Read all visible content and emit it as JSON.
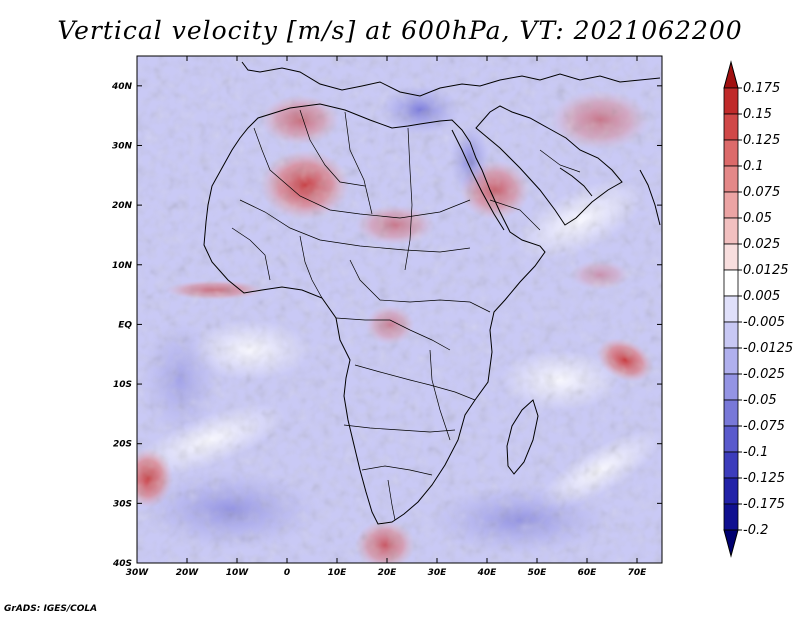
{
  "title": "Vertical velocity [m/s] at 600hPa, VT: 2021062200",
  "credit": "GrADS: IGES/COLA",
  "map": {
    "lon_range": [
      -30,
      75
    ],
    "lat_range": [
      -40,
      45
    ],
    "lon_ticks": [
      "30W",
      "20W",
      "10W",
      "0",
      "10E",
      "20E",
      "30E",
      "40E",
      "50E",
      "60E",
      "70E"
    ],
    "lat_ticks": [
      "40S",
      "30S",
      "20S",
      "10S",
      "EQ",
      "10N",
      "20N",
      "30N",
      "40N"
    ],
    "background_color": "#c9c9f5"
  },
  "colorbar": {
    "levels": [
      "0.175",
      "0.15",
      "0.125",
      "0.1",
      "0.075",
      "0.05",
      "0.025",
      "0.0125",
      "0.005",
      "-0.005",
      "-0.0125",
      "-0.025",
      "-0.05",
      "-0.075",
      "-0.1",
      "-0.125",
      "-0.175",
      "-0.2"
    ],
    "colors": [
      "#a01010",
      "#c02a2a",
      "#d04848",
      "#dc6a6a",
      "#e48888",
      "#eca4a4",
      "#f2c0c0",
      "#f8dede",
      "#ffffff",
      "#e0e0fa",
      "#c8c8f4",
      "#b0b0ee",
      "#9494e4",
      "#7878d8",
      "#5a5acc",
      "#3c3cbc",
      "#2222a8",
      "#101090",
      "#000070"
    ]
  }
}
